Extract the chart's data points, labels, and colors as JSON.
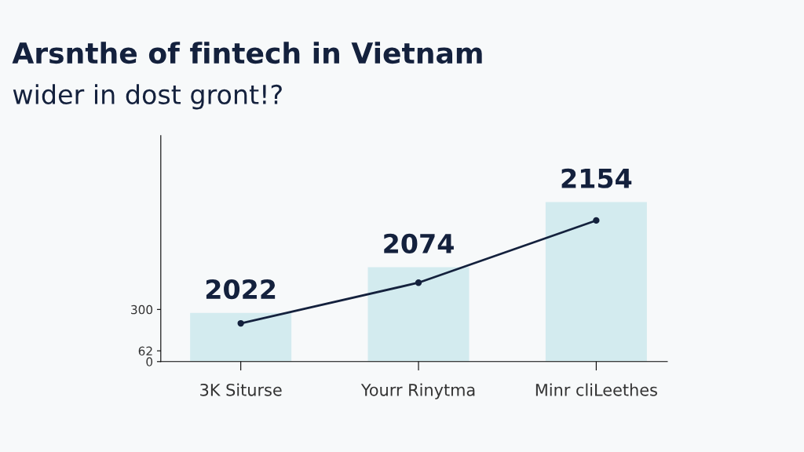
{
  "chart_data": {
    "type": "bar",
    "title": "Arsnthe of fintech in Vietnam",
    "subtitle": "wider in dost gront!?",
    "categories": [
      "3K Siturse",
      "Yourr Rinytma",
      "Minr cliLeethes"
    ],
    "series": [
      {
        "color": "#d3ebef",
        "values": [
          280,
          543,
          918
        ]
      },
      {
        "type": "line",
        "color": "#14213d",
        "values": [
          220,
          454,
          812
        ]
      }
    ],
    "annotations": [
      {
        "text": "2022",
        "x": "3K Siturse",
        "y": 280
      },
      {
        "text": "2074",
        "x": "Yourr Rinytma",
        "y": 543
      },
      {
        "text": "2154",
        "x": "Minr cliLeethes",
        "y": 918
      }
    ],
    "ylim": [
      0,
      1300
    ],
    "yticks": [
      0,
      62,
      300
    ],
    "marker": "circle",
    "line_style": "solid",
    "grid": false,
    "legend": false
  }
}
